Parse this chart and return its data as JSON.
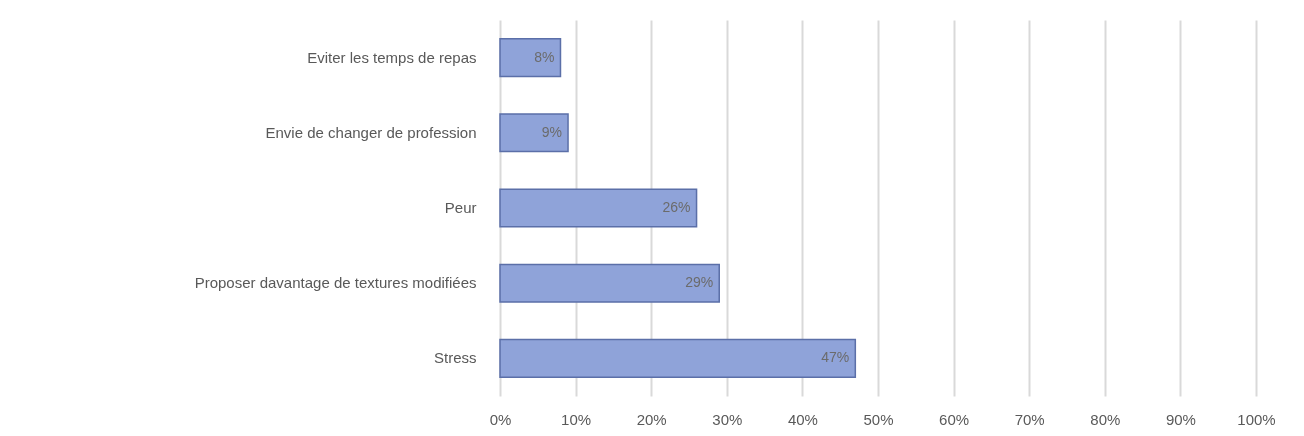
{
  "chart_data": {
    "type": "bar",
    "orientation": "horizontal",
    "categories": [
      "Eviter les temps de repas",
      "Envie de changer de profession",
      "Peur",
      "Proposer davantage de textures modifiées",
      "Stress"
    ],
    "values": [
      8,
      9,
      26,
      29,
      47
    ],
    "value_labels": [
      "8%",
      "9%",
      "26%",
      "29%",
      "47%"
    ],
    "color": "#8fa3d9",
    "xlim": [
      0,
      100
    ],
    "xticks": [
      {
        "value": 0,
        "label": "0%"
      },
      {
        "value": 10,
        "label": "10%"
      },
      {
        "value": 20,
        "label": "20%"
      },
      {
        "value": 30,
        "label": "30%"
      },
      {
        "value": 40,
        "label": "40%"
      },
      {
        "value": 50,
        "label": "50%"
      },
      {
        "value": 60,
        "label": "60%"
      },
      {
        "value": 70,
        "label": "70%"
      },
      {
        "value": 80,
        "label": "80%"
      },
      {
        "value": 90,
        "label": "90%"
      },
      {
        "value": 100,
        "label": "100%"
      }
    ],
    "grid": "x"
  }
}
